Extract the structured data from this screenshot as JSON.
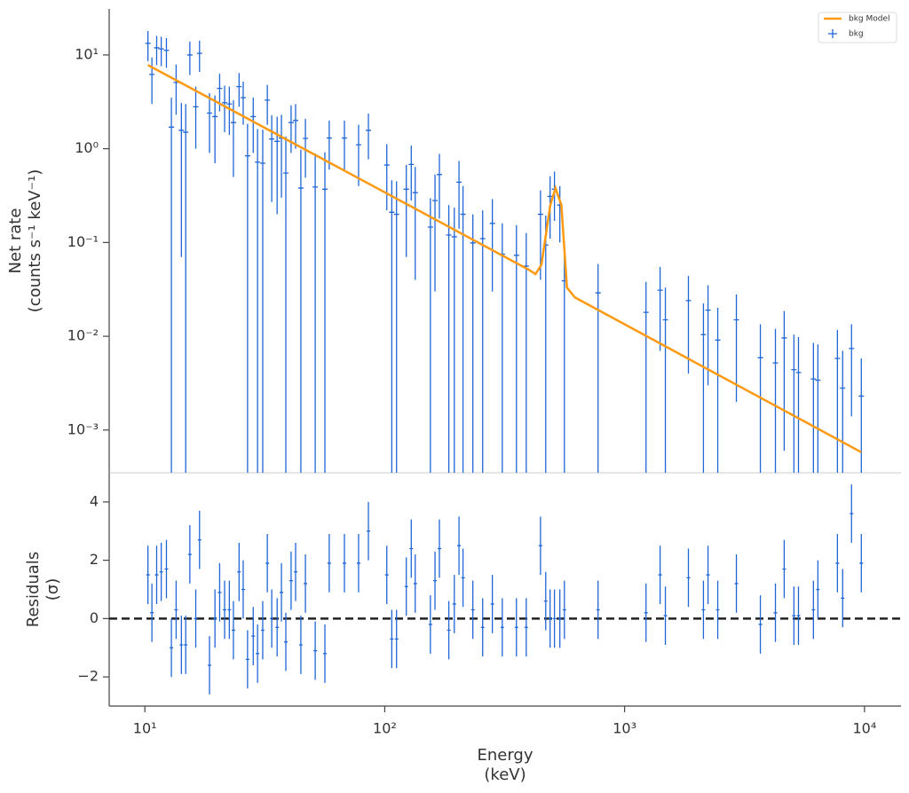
{
  "chart_data": [
    {
      "type": "errorbar",
      "xlog": true,
      "ylog": true,
      "ylabel": [
        "Net rate",
        "(counts s⁻¹ keV⁻¹)"
      ],
      "xlim": [
        7.1,
        14200
      ],
      "ylim": [
        0.00035,
        31
      ],
      "yticks": [
        {
          "value": 10,
          "label": "10¹"
        },
        {
          "value": 1,
          "label": "10⁰"
        },
        {
          "value": 0.1,
          "label": "10⁻¹"
        },
        {
          "value": 0.01,
          "label": "10⁻²"
        },
        {
          "value": 0.001,
          "label": "10⁻³"
        }
      ],
      "legend": "upper right",
      "series": [
        {
          "name": "bkg Model",
          "color": "#ff9912",
          "x": [
            10.3,
            400,
            425,
            450,
            490,
            515,
            545,
            575,
            620,
            9700
          ],
          "values": [
            7.8,
            0.051,
            0.046,
            0.058,
            0.25,
            0.38,
            0.25,
            0.033,
            0.026,
            0.00058
          ]
        }
      ],
      "points": {
        "name": "bkg",
        "color": "#1f66d6",
        "x": [
          10.3,
          10.7,
          11.2,
          11.7,
          12.3,
          12.9,
          13.5,
          14.2,
          14.8,
          15.4,
          16.3,
          16.9,
          18.6,
          19.6,
          20.5,
          21.5,
          22.5,
          23.4,
          24.7,
          25.7,
          26.8,
          28.3,
          29.5,
          31.0,
          32.4,
          33.8,
          35.6,
          37.1,
          38.7,
          40.7,
          42.5,
          44.7,
          46.7,
          51.3,
          56.3,
          58.7,
          67.9,
          77.8,
          85.5,
          102,
          107,
          112,
          123,
          129,
          134,
          155,
          162,
          169,
          185,
          195,
          204,
          212,
          233,
          256,
          281,
          309,
          354,
          389,
          446,
          469,
          489,
          510,
          537,
          561,
          775,
          1228,
          1406,
          1479,
          1845,
          2131,
          2227,
          2445,
          2924,
          3681,
          4253,
          4627,
          5080,
          5307,
          6126,
          6394,
          7713,
          8110,
          8830,
          9700
        ],
        "values": [
          13.3,
          6.2,
          11.9,
          11.6,
          11.2,
          1.7,
          5.1,
          1.57,
          1.5,
          10,
          2.8,
          10.4,
          2.4,
          2.2,
          4.4,
          3.1,
          3.0,
          1.9,
          4.6,
          3.5,
          0.84,
          2.2,
          0.72,
          0.7,
          3.3,
          1.27,
          1.2,
          1.3,
          0.55,
          1.9,
          2.0,
          0.38,
          1.29,
          0.39,
          0.37,
          1.3,
          1.3,
          1.1,
          1.57,
          0.67,
          0.21,
          0.2,
          0.37,
          0.68,
          0.34,
          0.146,
          0.28,
          0.53,
          0.12,
          0.115,
          0.44,
          0.2,
          0.099,
          0.11,
          0.16,
          0.075,
          0.073,
          0.056,
          0.2,
          0.094,
          0.31,
          0.37,
          0.25,
          0.039,
          0.029,
          0.018,
          0.031,
          0.015,
          0.024,
          0.0104,
          0.019,
          0.0091,
          0.015,
          0.0059,
          0.0052,
          0.0096,
          0.0044,
          0.0041,
          0.0035,
          0.0034,
          0.0058,
          0.0028,
          0.0074,
          0.0023
        ],
        "errors": [
          4.7,
          3.2,
          4.1,
          4.0,
          3.9,
          1.8,
          2.8,
          1.5,
          1.5,
          3.9,
          1.8,
          3.8,
          1.5,
          1.5,
          1.9,
          1.6,
          1.6,
          1.4,
          1.8,
          1.7,
          1.0,
          1.3,
          0.9,
          0.9,
          1.5,
          1.0,
          1.0,
          1.0,
          0.8,
          1.0,
          1.0,
          0.6,
          0.8,
          0.5,
          0.55,
          0.7,
          0.7,
          0.7,
          0.8,
          0.45,
          0.25,
          0.25,
          0.3,
          0.4,
          0.3,
          0.15,
          0.25,
          0.35,
          0.13,
          0.12,
          0.3,
          0.2,
          0.1,
          0.11,
          0.13,
          0.085,
          0.08,
          0.07,
          0.16,
          0.1,
          0.2,
          0.2,
          0.15,
          0.045,
          0.03,
          0.02,
          0.024,
          0.018,
          0.02,
          0.012,
          0.016,
          0.011,
          0.013,
          0.0075,
          0.0068,
          0.009,
          0.006,
          0.0057,
          0.005,
          0.0048,
          0.0059,
          0.0042,
          0.006,
          0.0035
        ]
      }
    },
    {
      "type": "errorbar",
      "xlog": true,
      "ylabel": [
        "Residuals",
        "(σ)"
      ],
      "xlabel": [
        "Energy",
        "(keV)"
      ],
      "xlim": [
        7.1,
        14200
      ],
      "ylim": [
        -3,
        5
      ],
      "xticks": [
        {
          "value": 10,
          "label": "10¹"
        },
        {
          "value": 100,
          "label": "10²"
        },
        {
          "value": 1000,
          "label": "10³"
        },
        {
          "value": 10000,
          "label": "10⁴"
        }
      ],
      "yticks": [
        {
          "value": -2,
          "label": "−2"
        },
        0,
        2,
        4
      ],
      "hline": 0,
      "color": "#1f66d6",
      "error": 1,
      "values": [
        1.5,
        0.2,
        1.5,
        1.6,
        1.7,
        -1.0,
        0.3,
        -0.9,
        -0.9,
        2.2,
        0.0,
        2.7,
        -1.6,
        0.0,
        0.9,
        0.3,
        0.3,
        -0.4,
        1.6,
        1.0,
        -1.4,
        -0.6,
        -1.2,
        -0.4,
        1.9,
        0.0,
        -0.3,
        0.9,
        -0.8,
        1.3,
        1.6,
        -0.9,
        1.2,
        -1.1,
        -1.2,
        1.9,
        1.9,
        1.9,
        3.0,
        1.5,
        -0.7,
        -0.7,
        1.1,
        2.4,
        1.2,
        -0.2,
        1.3,
        2.4,
        -0.4,
        0.5,
        2.5,
        1.4,
        0.3,
        -0.3,
        0.5,
        -0.3,
        -0.3,
        -0.3,
        2.5,
        0.6,
        0.0,
        0.0,
        0.0,
        0.3,
        0.3,
        0.2,
        1.5,
        0.1,
        1.4,
        0.3,
        1.5,
        0.3,
        1.2,
        -0.2,
        0.2,
        1.7,
        0.1,
        0.1,
        0.3,
        1.0,
        1.9,
        0.7,
        3.6,
        1.9
      ]
    }
  ]
}
